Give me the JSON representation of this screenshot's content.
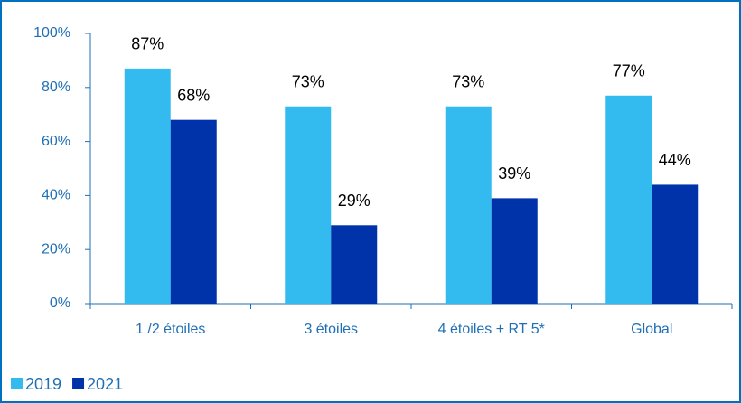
{
  "chart_data": {
    "type": "bar",
    "categories": [
      "1 /2 étoiles",
      "3 étoiles",
      "4 étoiles + RT 5*",
      "Global"
    ],
    "series": [
      {
        "name": "2019",
        "color": "#33bbf0",
        "values": [
          87,
          73,
          73,
          77
        ],
        "value_labels": [
          "87%",
          "73%",
          "73%",
          "77%"
        ]
      },
      {
        "name": "2021",
        "color": "#0033aa",
        "values": [
          68,
          29,
          39,
          44
        ],
        "value_labels": [
          "68%",
          "29%",
          "39%",
          "44%"
        ]
      }
    ],
    "ylim": [
      0,
      100
    ],
    "yticks": [
      {
        "value": 0,
        "label": "0%"
      },
      {
        "value": 20,
        "label": "20%"
      },
      {
        "value": 40,
        "label": "40%"
      },
      {
        "value": 60,
        "label": "60%"
      },
      {
        "value": 80,
        "label": "80%"
      },
      {
        "value": 100,
        "label": "100%"
      }
    ],
    "grid": false,
    "legend": "bottom-left"
  }
}
